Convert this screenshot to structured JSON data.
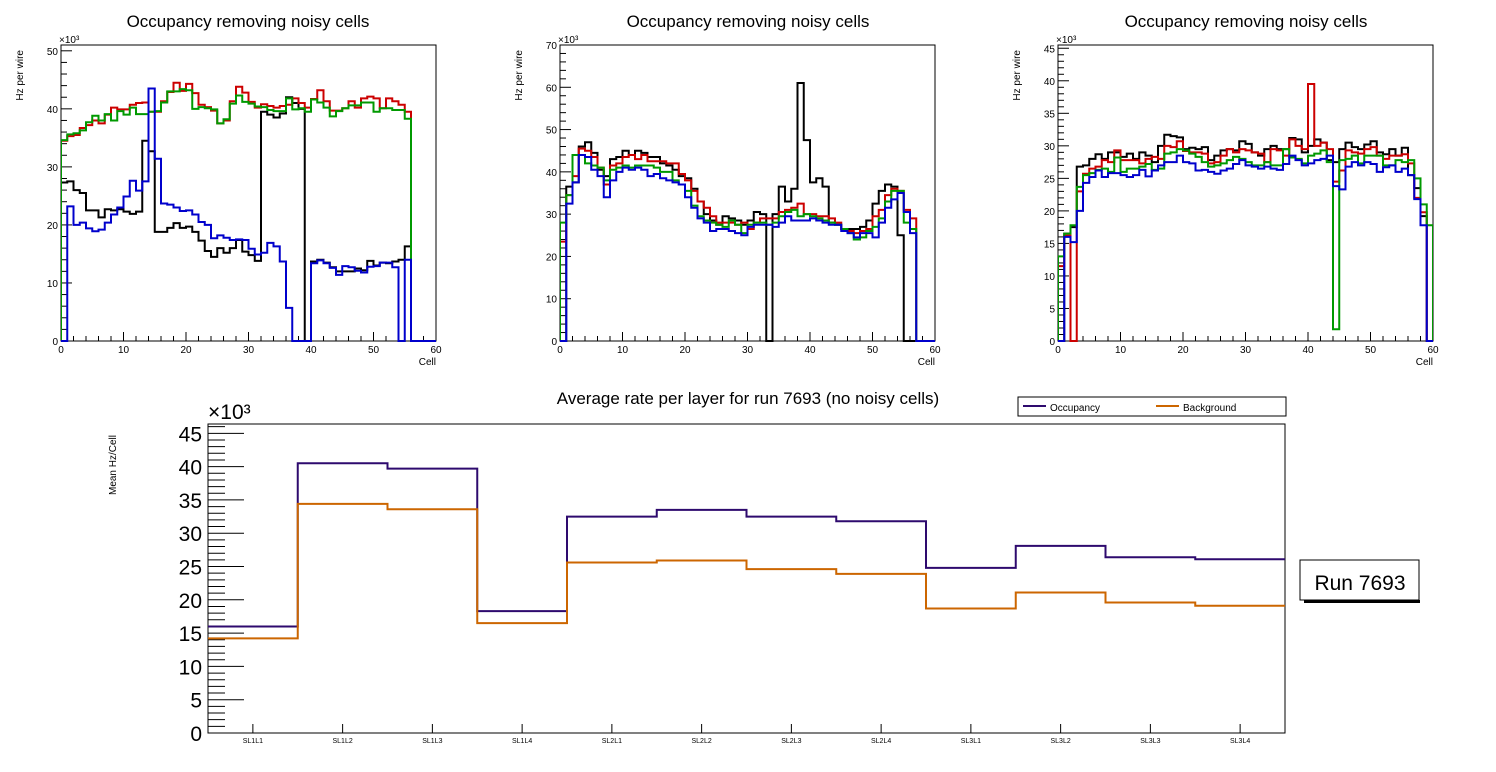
{
  "chart_data": [
    {
      "type": "histogram-step",
      "title": "Occupancy removing noisy cells",
      "xlabel": "Cell",
      "ylabel": "Hz per wire",
      "y_multiplier": "×10³",
      "xlim": [
        0,
        60
      ],
      "ylim": [
        0,
        51
      ],
      "x_ticks": [
        0,
        10,
        20,
        30,
        40,
        50,
        60
      ],
      "y_ticks": [
        0,
        10,
        20,
        30,
        40,
        50
      ],
      "series": [
        {
          "name": "black",
          "color": "#000000",
          "values": [
            27.3,
            27.5,
            26,
            25.5,
            22.5,
            22.5,
            21.3,
            22.7,
            22.5,
            22.7,
            22.3,
            21.9,
            22.3,
            34.5,
            32.7,
            18.8,
            18.8,
            19.5,
            20.3,
            19.5,
            19.7,
            18.8,
            17.3,
            15.5,
            14.5,
            16,
            15.2,
            16,
            17.4,
            15.4,
            14.8,
            13.8,
            39.5,
            39,
            38.5,
            39.2,
            42,
            41,
            40,
            0,
            13.7,
            14,
            13.5,
            12.7,
            12,
            12,
            12,
            12.5,
            12.2,
            13.8,
            13,
            13.5,
            13.4,
            13.7,
            14,
            16.3,
            0,
            0,
            0,
            0
          ]
        },
        {
          "name": "red",
          "color": "#cc0000",
          "values": [
            34.5,
            35.3,
            35.5,
            36.7,
            37.2,
            38,
            37.5,
            39,
            40.2,
            39.9,
            39.9,
            40.7,
            41,
            41.1,
            39.5,
            39.5,
            41.3,
            42.9,
            44.5,
            43.1,
            44.3,
            42.7,
            40.7,
            40.3,
            39.7,
            37.5,
            38,
            41.3,
            43.8,
            42.8,
            41.2,
            40.2,
            40.8,
            40.5,
            40.2,
            40.5,
            40.7,
            41.8,
            41,
            40.2,
            41.7,
            43.2,
            41.3,
            39.7,
            39.7,
            40.1,
            41.3,
            40.2,
            41.8,
            42.1,
            41.8,
            40.1,
            41.8,
            41.3,
            40.7,
            39.5,
            0,
            0,
            0,
            0
          ]
        },
        {
          "name": "green",
          "color": "#009900",
          "values": [
            34.6,
            35.6,
            35.8,
            36.3,
            37.7,
            38.8,
            38,
            39.1,
            38,
            39.6,
            39,
            40.2,
            39.1,
            39.1,
            39.5,
            39.6,
            41.1,
            43,
            43,
            43.4,
            43.2,
            40,
            40.3,
            40.1,
            39.9,
            37.5,
            38.2,
            40.9,
            42.3,
            41.2,
            40.9,
            40.4,
            40.3,
            39.8,
            39.6,
            39.6,
            41.8,
            39.9,
            40.1,
            39.5,
            41.6,
            41.1,
            40.2,
            38.7,
            39.6,
            40.1,
            40.6,
            40.6,
            41.1,
            41.1,
            39.5,
            40.1,
            40.1,
            39.8,
            39.8,
            38.3,
            0,
            0,
            0,
            0
          ]
        },
        {
          "name": "blue",
          "color": "#0000cc",
          "values": [
            0,
            23.2,
            20,
            20.4,
            19.4,
            18.9,
            19.2,
            20.4,
            21.8,
            23,
            24.9,
            27.6,
            25.9,
            27.5,
            43.5,
            31.4,
            23.7,
            23.5,
            23,
            22.4,
            22.5,
            21.8,
            20.5,
            20,
            17.7,
            18.2,
            17.8,
            17.4,
            17.5,
            17.4,
            15.9,
            14.9,
            15.2,
            16.9,
            16.3,
            13.7,
            5.7,
            0,
            0,
            0,
            13.4,
            13.9,
            13.4,
            12.6,
            11.4,
            12.9,
            12.7,
            12.1,
            11.8,
            12.8,
            12.9,
            13.5,
            13.5,
            12.7,
            0,
            14,
            0,
            0,
            0,
            0
          ]
        }
      ]
    },
    {
      "type": "histogram-step",
      "title": "Occupancy removing noisy cells",
      "xlabel": "Cell",
      "ylabel": "Hz per wire",
      "y_multiplier": "×10³",
      "xlim": [
        0,
        60
      ],
      "ylim": [
        0,
        70
      ],
      "x_ticks": [
        0,
        10,
        20,
        30,
        40,
        50,
        60
      ],
      "y_ticks": [
        0,
        10,
        20,
        30,
        40,
        50,
        60,
        70
      ],
      "series": [
        {
          "name": "black",
          "color": "#000000",
          "values": [
            0,
            36.5,
            37.5,
            46,
            47,
            44.5,
            40.5,
            39,
            43,
            43.5,
            45,
            44,
            45,
            44.5,
            43.5,
            43.5,
            42,
            41.5,
            40.5,
            39,
            38.5,
            36,
            33,
            30,
            28.5,
            27.5,
            29.5,
            29,
            28.5,
            27.5,
            28.5,
            30.5,
            30,
            0,
            30,
            36.5,
            33,
            36,
            61,
            47.5,
            37.5,
            38.5,
            36.5,
            28,
            27.5,
            26.5,
            26.5,
            26.5,
            27,
            28.5,
            32.5,
            35.5,
            37,
            36.5,
            25,
            0,
            0,
            0,
            0,
            0
          ]
        },
        {
          "name": "red",
          "color": "#cc0000",
          "values": [
            23.5,
            34.5,
            39,
            45.5,
            45,
            43.5,
            41,
            37,
            41.5,
            42,
            43.5,
            44,
            43,
            44,
            42.5,
            42.5,
            42.5,
            42,
            42,
            39.5,
            38,
            35.5,
            33,
            31.5,
            29.5,
            28,
            28,
            28,
            27.5,
            28,
            26.5,
            28,
            29,
            29,
            29,
            30.5,
            31,
            31.5,
            32.5,
            30,
            30,
            29.5,
            29.5,
            29,
            28,
            26.5,
            26,
            25.5,
            26,
            26.5,
            29.5,
            31,
            34.5,
            36,
            35.5,
            31,
            29,
            0,
            0,
            0
          ]
        },
        {
          "name": "green",
          "color": "#009900",
          "values": [
            28,
            34.5,
            44,
            44,
            42,
            41.5,
            41,
            38,
            40.5,
            41,
            41.5,
            41,
            41.5,
            41.5,
            41.5,
            41,
            40,
            40,
            38,
            37,
            35.5,
            32,
            29.5,
            28.5,
            28,
            27.5,
            27,
            28.5,
            27.5,
            25.5,
            27.5,
            28,
            28,
            27.5,
            28,
            29.5,
            30.5,
            31,
            29.5,
            30,
            29.5,
            29,
            28.5,
            28,
            27.5,
            26.5,
            25.5,
            24,
            24.5,
            26,
            27,
            29,
            33,
            35.5,
            35.5,
            28,
            26.5,
            0,
            0,
            0
          ]
        },
        {
          "name": "blue",
          "color": "#0000cc",
          "values": [
            0,
            32.5,
            37.5,
            44,
            43.5,
            40.5,
            39,
            34,
            38,
            40,
            41,
            40.5,
            41,
            40.5,
            39,
            39.5,
            38.5,
            38,
            37.5,
            37,
            34,
            31.5,
            29,
            28,
            26,
            26.5,
            26.5,
            26,
            25.5,
            25,
            27,
            27.5,
            27.5,
            27.5,
            27,
            28,
            29.5,
            28.5,
            28.5,
            28.5,
            29,
            28.5,
            28,
            27.5,
            27.5,
            26,
            25.5,
            24.5,
            25.5,
            25.5,
            24.5,
            28,
            31.5,
            33.5,
            35,
            30.5,
            25.5,
            0,
            0,
            0
          ]
        }
      ]
    },
    {
      "type": "histogram-step",
      "title": "Occupancy removing noisy cells",
      "xlabel": "Cell",
      "ylabel": "Hz per wire",
      "y_multiplier": "×10³",
      "xlim": [
        0,
        60
      ],
      "ylim": [
        0,
        45.5
      ],
      "x_ticks": [
        0,
        10,
        20,
        30,
        40,
        50,
        60
      ],
      "y_ticks": [
        0,
        5,
        10,
        15,
        20,
        25,
        30,
        35,
        40,
        45
      ],
      "series": [
        {
          "name": "black",
          "color": "#000000",
          "values": [
            0,
            16.5,
            17.5,
            26.8,
            27,
            28,
            28.7,
            28,
            29,
            29,
            28.3,
            28.8,
            28,
            29,
            28.5,
            27.5,
            30,
            31.7,
            31.5,
            31.3,
            29.5,
            29.7,
            29.5,
            29.8,
            27.8,
            28.5,
            29.3,
            29.5,
            29.3,
            30.7,
            30.3,
            29,
            28.5,
            29.5,
            30,
            29.5,
            29.5,
            31.2,
            31,
            29,
            30,
            31,
            30.5,
            27.8,
            27.5,
            29.5,
            30.5,
            29.8,
            29.5,
            30.2,
            30.7,
            29,
            28.7,
            29.5,
            28.5,
            29.7,
            25.5,
            23.5,
            19.2,
            0
          ]
        },
        {
          "name": "red",
          "color": "#cc0000",
          "values": [
            11.5,
            16.2,
            0,
            23,
            25.7,
            26.5,
            26.8,
            27.8,
            27.5,
            29.3,
            27.8,
            27.8,
            27.8,
            27.3,
            28,
            28.3,
            28,
            30,
            29.8,
            30.7,
            29.2,
            29,
            29,
            28.8,
            27.3,
            27.5,
            28.5,
            29.5,
            29,
            29.5,
            29.3,
            29,
            28.8,
            27.5,
            29.5,
            29.3,
            28.5,
            31,
            30,
            29.5,
            39.5,
            30,
            30.5,
            29.5,
            24.5,
            26.2,
            29.3,
            29,
            28.8,
            29.5,
            29.8,
            28.5,
            28,
            28.5,
            28.5,
            28.7,
            27.3,
            22,
            19.8,
            0
          ]
        },
        {
          "name": "green",
          "color": "#009900",
          "values": [
            13,
            16.5,
            17.8,
            23.7,
            25.5,
            25.8,
            26.3,
            26.5,
            26,
            28.2,
            26,
            26.5,
            26.5,
            26.8,
            27.2,
            26.3,
            26.5,
            28.8,
            29,
            29.5,
            29.3,
            28.8,
            28.3,
            27.5,
            26.8,
            27,
            27.3,
            27.8,
            28.3,
            28,
            27.5,
            27,
            27,
            27.5,
            27,
            27,
            29.5,
            28.2,
            28,
            27.3,
            28.5,
            28.8,
            29.3,
            27.5,
            1.8,
            27.8,
            28,
            28.5,
            27.3,
            28.5,
            28.5,
            28.5,
            27,
            27,
            27.8,
            27.5,
            27.8,
            25,
            21,
            17.8
          ]
        },
        {
          "name": "blue",
          "color": "#0000cc",
          "values": [
            0,
            16,
            15.2,
            20,
            24.3,
            25.2,
            26.2,
            25.2,
            25.8,
            25.8,
            25.5,
            25.2,
            25.5,
            26.3,
            25.3,
            26.2,
            27,
            27.5,
            27.5,
            28.5,
            27.5,
            27.3,
            26.2,
            26.3,
            26,
            25.7,
            26.2,
            26.5,
            27.2,
            27.8,
            27,
            26.8,
            26.5,
            26.8,
            26.5,
            26.3,
            27.2,
            28.5,
            27.8,
            27,
            27.3,
            27.8,
            28,
            28.5,
            23.8,
            23.3,
            26.8,
            27.5,
            27,
            27.5,
            27.2,
            26,
            26.7,
            27,
            26,
            26.5,
            25.5,
            21.8,
            17.8,
            0
          ]
        }
      ]
    },
    {
      "type": "histogram-step",
      "title": "Average rate per layer for run 7693 (no noisy cells)",
      "xlabel": "",
      "ylabel": "Mean Hz/Cell",
      "y_multiplier": "×10³",
      "ylim": [
        0,
        46.4
      ],
      "y_ticks": [
        0,
        5,
        10,
        15,
        20,
        25,
        30,
        35,
        40,
        45
      ],
      "categories": [
        "SL1L1",
        "SL1L2",
        "SL1L3",
        "SL1L4",
        "SL2L1",
        "SL2L2",
        "SL2L3",
        "SL2L4",
        "SL3L1",
        "SL3L2",
        "SL3L3",
        "SL3L4"
      ],
      "legend_position": "top-right",
      "series": [
        {
          "name": "Occupancy",
          "color": "#2e0a6e",
          "values": [
            16.0,
            40.5,
            39.7,
            18.3,
            32.5,
            33.5,
            32.5,
            31.8,
            24.8,
            28.1,
            26.4,
            26.1
          ]
        },
        {
          "name": "Background",
          "color": "#cc6600",
          "values": [
            14.2,
            34.4,
            33.6,
            16.5,
            25.6,
            25.9,
            24.6,
            23.9,
            18.7,
            21.1,
            19.6,
            19.1
          ]
        }
      ],
      "annotation": "Run 7693"
    }
  ]
}
